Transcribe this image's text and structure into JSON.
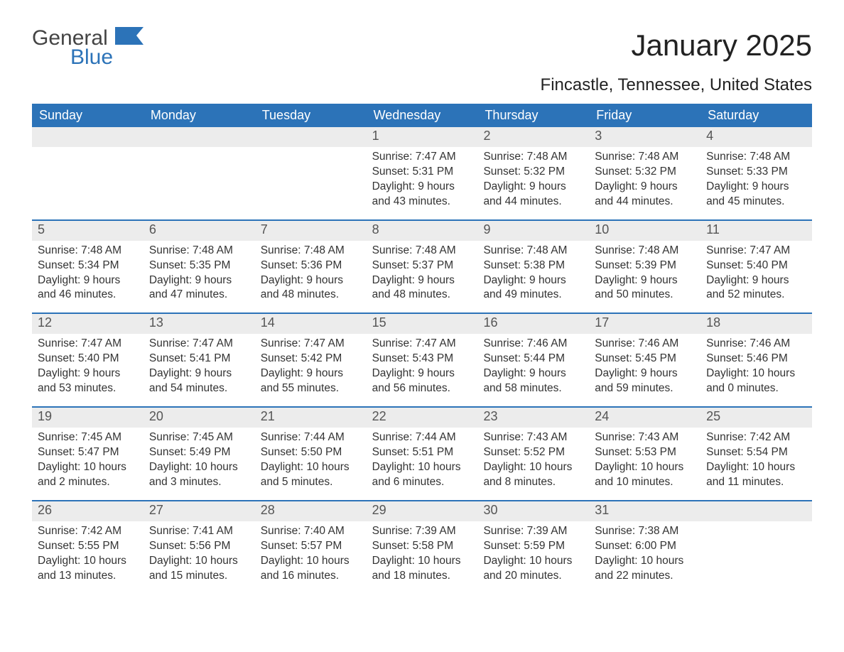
{
  "logo": {
    "word1": "General",
    "word2": "Blue"
  },
  "title": "January 2025",
  "location": "Fincastle, Tennessee, United States",
  "colors": {
    "header_bg": "#2c73b8",
    "header_text": "#ffffff",
    "daynum_bg": "#ececec",
    "border": "#2c73b8",
    "text": "#333333"
  },
  "dayNames": [
    "Sunday",
    "Monday",
    "Tuesday",
    "Wednesday",
    "Thursday",
    "Friday",
    "Saturday"
  ],
  "weeks": [
    [
      {
        "day": "",
        "sunrise": "",
        "sunset": "",
        "daylight": ""
      },
      {
        "day": "",
        "sunrise": "",
        "sunset": "",
        "daylight": ""
      },
      {
        "day": "",
        "sunrise": "",
        "sunset": "",
        "daylight": ""
      },
      {
        "day": "1",
        "sunrise": "Sunrise: 7:47 AM",
        "sunset": "Sunset: 5:31 PM",
        "daylight": "Daylight: 9 hours and 43 minutes."
      },
      {
        "day": "2",
        "sunrise": "Sunrise: 7:48 AM",
        "sunset": "Sunset: 5:32 PM",
        "daylight": "Daylight: 9 hours and 44 minutes."
      },
      {
        "day": "3",
        "sunrise": "Sunrise: 7:48 AM",
        "sunset": "Sunset: 5:32 PM",
        "daylight": "Daylight: 9 hours and 44 minutes."
      },
      {
        "day": "4",
        "sunrise": "Sunrise: 7:48 AM",
        "sunset": "Sunset: 5:33 PM",
        "daylight": "Daylight: 9 hours and 45 minutes."
      }
    ],
    [
      {
        "day": "5",
        "sunrise": "Sunrise: 7:48 AM",
        "sunset": "Sunset: 5:34 PM",
        "daylight": "Daylight: 9 hours and 46 minutes."
      },
      {
        "day": "6",
        "sunrise": "Sunrise: 7:48 AM",
        "sunset": "Sunset: 5:35 PM",
        "daylight": "Daylight: 9 hours and 47 minutes."
      },
      {
        "day": "7",
        "sunrise": "Sunrise: 7:48 AM",
        "sunset": "Sunset: 5:36 PM",
        "daylight": "Daylight: 9 hours and 48 minutes."
      },
      {
        "day": "8",
        "sunrise": "Sunrise: 7:48 AM",
        "sunset": "Sunset: 5:37 PM",
        "daylight": "Daylight: 9 hours and 48 minutes."
      },
      {
        "day": "9",
        "sunrise": "Sunrise: 7:48 AM",
        "sunset": "Sunset: 5:38 PM",
        "daylight": "Daylight: 9 hours and 49 minutes."
      },
      {
        "day": "10",
        "sunrise": "Sunrise: 7:48 AM",
        "sunset": "Sunset: 5:39 PM",
        "daylight": "Daylight: 9 hours and 50 minutes."
      },
      {
        "day": "11",
        "sunrise": "Sunrise: 7:47 AM",
        "sunset": "Sunset: 5:40 PM",
        "daylight": "Daylight: 9 hours and 52 minutes."
      }
    ],
    [
      {
        "day": "12",
        "sunrise": "Sunrise: 7:47 AM",
        "sunset": "Sunset: 5:40 PM",
        "daylight": "Daylight: 9 hours and 53 minutes."
      },
      {
        "day": "13",
        "sunrise": "Sunrise: 7:47 AM",
        "sunset": "Sunset: 5:41 PM",
        "daylight": "Daylight: 9 hours and 54 minutes."
      },
      {
        "day": "14",
        "sunrise": "Sunrise: 7:47 AM",
        "sunset": "Sunset: 5:42 PM",
        "daylight": "Daylight: 9 hours and 55 minutes."
      },
      {
        "day": "15",
        "sunrise": "Sunrise: 7:47 AM",
        "sunset": "Sunset: 5:43 PM",
        "daylight": "Daylight: 9 hours and 56 minutes."
      },
      {
        "day": "16",
        "sunrise": "Sunrise: 7:46 AM",
        "sunset": "Sunset: 5:44 PM",
        "daylight": "Daylight: 9 hours and 58 minutes."
      },
      {
        "day": "17",
        "sunrise": "Sunrise: 7:46 AM",
        "sunset": "Sunset: 5:45 PM",
        "daylight": "Daylight: 9 hours and 59 minutes."
      },
      {
        "day": "18",
        "sunrise": "Sunrise: 7:46 AM",
        "sunset": "Sunset: 5:46 PM",
        "daylight": "Daylight: 10 hours and 0 minutes."
      }
    ],
    [
      {
        "day": "19",
        "sunrise": "Sunrise: 7:45 AM",
        "sunset": "Sunset: 5:47 PM",
        "daylight": "Daylight: 10 hours and 2 minutes."
      },
      {
        "day": "20",
        "sunrise": "Sunrise: 7:45 AM",
        "sunset": "Sunset: 5:49 PM",
        "daylight": "Daylight: 10 hours and 3 minutes."
      },
      {
        "day": "21",
        "sunrise": "Sunrise: 7:44 AM",
        "sunset": "Sunset: 5:50 PM",
        "daylight": "Daylight: 10 hours and 5 minutes."
      },
      {
        "day": "22",
        "sunrise": "Sunrise: 7:44 AM",
        "sunset": "Sunset: 5:51 PM",
        "daylight": "Daylight: 10 hours and 6 minutes."
      },
      {
        "day": "23",
        "sunrise": "Sunrise: 7:43 AM",
        "sunset": "Sunset: 5:52 PM",
        "daylight": "Daylight: 10 hours and 8 minutes."
      },
      {
        "day": "24",
        "sunrise": "Sunrise: 7:43 AM",
        "sunset": "Sunset: 5:53 PM",
        "daylight": "Daylight: 10 hours and 10 minutes."
      },
      {
        "day": "25",
        "sunrise": "Sunrise: 7:42 AM",
        "sunset": "Sunset: 5:54 PM",
        "daylight": "Daylight: 10 hours and 11 minutes."
      }
    ],
    [
      {
        "day": "26",
        "sunrise": "Sunrise: 7:42 AM",
        "sunset": "Sunset: 5:55 PM",
        "daylight": "Daylight: 10 hours and 13 minutes."
      },
      {
        "day": "27",
        "sunrise": "Sunrise: 7:41 AM",
        "sunset": "Sunset: 5:56 PM",
        "daylight": "Daylight: 10 hours and 15 minutes."
      },
      {
        "day": "28",
        "sunrise": "Sunrise: 7:40 AM",
        "sunset": "Sunset: 5:57 PM",
        "daylight": "Daylight: 10 hours and 16 minutes."
      },
      {
        "day": "29",
        "sunrise": "Sunrise: 7:39 AM",
        "sunset": "Sunset: 5:58 PM",
        "daylight": "Daylight: 10 hours and 18 minutes."
      },
      {
        "day": "30",
        "sunrise": "Sunrise: 7:39 AM",
        "sunset": "Sunset: 5:59 PM",
        "daylight": "Daylight: 10 hours and 20 minutes."
      },
      {
        "day": "31",
        "sunrise": "Sunrise: 7:38 AM",
        "sunset": "Sunset: 6:00 PM",
        "daylight": "Daylight: 10 hours and 22 minutes."
      },
      {
        "day": "",
        "sunrise": "",
        "sunset": "",
        "daylight": ""
      }
    ]
  ]
}
